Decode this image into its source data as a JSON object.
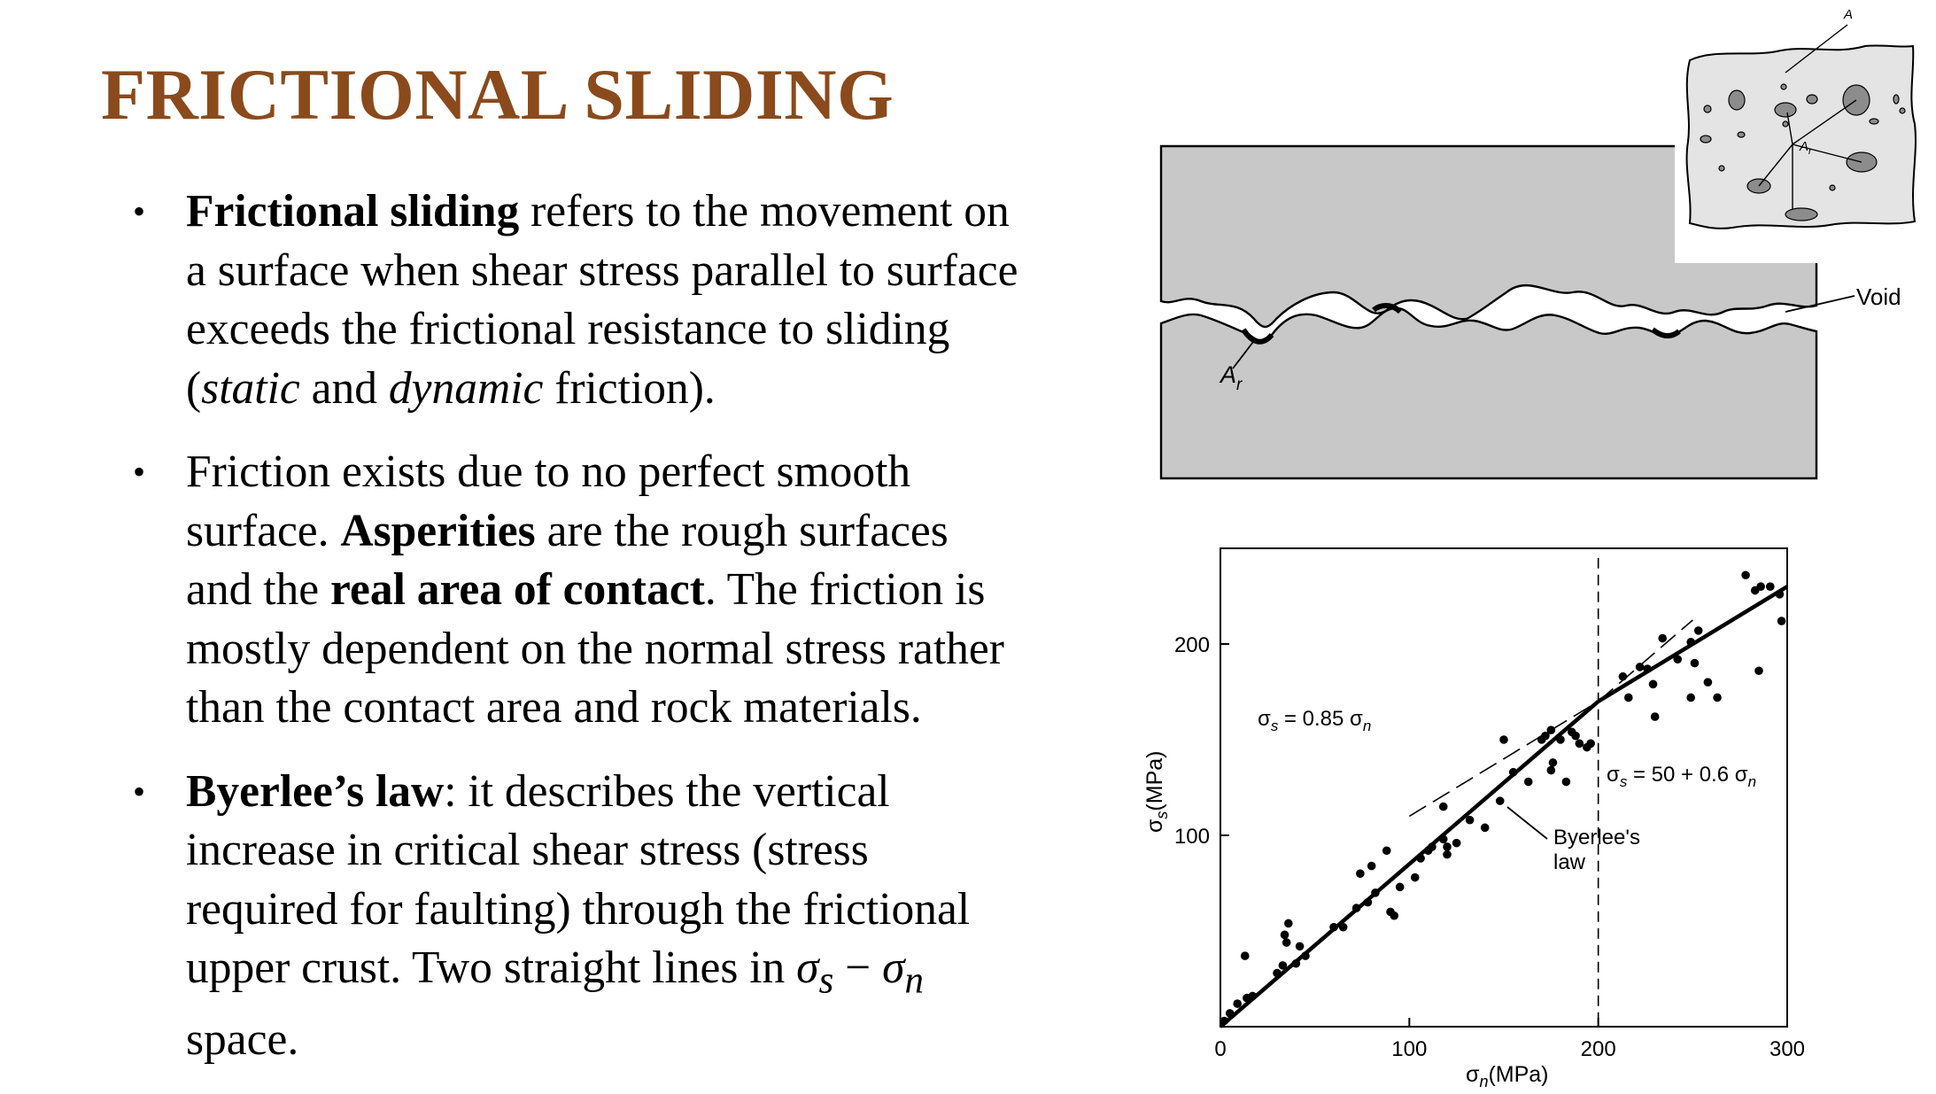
{
  "slide": {
    "title": "FRICTIONAL SLIDING",
    "bullets": [
      {
        "lines": [
          [
            {
              "t": "Frictional sliding",
              "b": true
            },
            {
              "t": " refers to the movement on"
            }
          ],
          [
            {
              "t": "a surface when shear stress parallel to surface"
            }
          ],
          [
            {
              "t": "exceeds the frictional resistance to sliding"
            }
          ],
          [
            {
              "t": "("
            },
            {
              "t": "static",
              "i": true
            },
            {
              "t": " and "
            },
            {
              "t": "dynamic",
              "i": true
            },
            {
              "t": " friction)."
            }
          ]
        ]
      },
      {
        "lines": [
          [
            {
              "t": "Friction exists due to no perfect smooth"
            }
          ],
          [
            {
              "t": "surface. "
            },
            {
              "t": "Asperities",
              "b": true
            },
            {
              "t": " are the rough surfaces"
            }
          ],
          [
            {
              "t": "and the "
            },
            {
              "t": "real area of contact",
              "b": true
            },
            {
              "t": ". The friction is"
            }
          ],
          [
            {
              "t": "mostly dependent on the normal stress rather"
            }
          ],
          [
            {
              "t": "than the contact area and rock materials."
            }
          ]
        ]
      },
      {
        "lines": [
          [
            {
              "t": "Byerlee’s law",
              "b": true
            },
            {
              "t": ": it describes the vertical"
            }
          ],
          [
            {
              "t": "increase in critical shear stress (stress"
            }
          ],
          [
            {
              "t": "required for faulting) through the frictional"
            }
          ],
          [
            {
              "t": "upper crust. Two straight lines in "
            },
            {
              "t": "σ",
              "m": true
            },
            {
              "t": "s",
              "m": true,
              "sub": true
            },
            {
              "t": " − "
            },
            {
              "t": "σ",
              "m": true
            },
            {
              "t": "n",
              "m": true,
              "sub": true
            }
          ],
          [
            {
              "t": "space."
            }
          ]
        ]
      }
    ]
  },
  "figure_top": {
    "label_a": "A",
    "label_ar_main": "A",
    "label_ar_sub": "r",
    "label_ar_inset_main": "A",
    "label_ar_inset_sub": "r",
    "label_void": "Void",
    "colors": {
      "rock": "#c8c8c8",
      "inset": "#e4e4e4",
      "grain": "#8c8c8c"
    }
  },
  "chart_data": {
    "type": "scatter",
    "xlabel_main": "σ",
    "xlabel_sub": "n",
    "xlabel_unit": "(MPa)",
    "ylabel_main": "σ",
    "ylabel_sub": "s",
    "ylabel_unit": "(MPa)",
    "xlim": [
      0,
      300
    ],
    "ylim": [
      0,
      250
    ],
    "xticks": [
      0,
      100,
      200,
      300
    ],
    "yticks": [
      100,
      200
    ],
    "grid": false,
    "annotations": {
      "eq1_main": "σ",
      "eq1_sub": "s",
      "eq1_rest": " = 0.85 σ",
      "eq1_end": "n",
      "eq2_main": "σ",
      "eq2_sub": "s",
      "eq2_rest": " = 50 + 0.6 σ",
      "eq2_end": "n",
      "byerlee_line1": "Byerlee's",
      "byerlee_line2": "law"
    },
    "series": [
      {
        "values": [
          [
            2,
            3
          ],
          [
            5,
            7
          ],
          [
            9,
            12
          ],
          [
            14,
            15
          ],
          [
            17,
            16
          ],
          [
            13,
            37
          ],
          [
            30,
            28
          ],
          [
            33,
            32
          ],
          [
            34,
            48
          ],
          [
            35,
            44
          ],
          [
            36,
            54
          ],
          [
            40,
            33
          ],
          [
            42,
            42
          ],
          [
            45,
            37
          ],
          [
            60,
            52
          ],
          [
            65,
            52
          ],
          [
            72,
            62
          ],
          [
            74,
            80
          ],
          [
            78,
            65
          ],
          [
            80,
            84
          ],
          [
            82,
            70
          ],
          [
            88,
            92
          ],
          [
            90,
            60
          ],
          [
            92,
            58
          ],
          [
            95,
            73
          ],
          [
            103,
            78
          ],
          [
            106,
            88
          ],
          [
            110,
            92
          ],
          [
            112,
            94
          ],
          [
            118,
            115
          ],
          [
            118,
            98
          ],
          [
            120,
            94
          ],
          [
            120,
            90
          ],
          [
            125,
            96
          ],
          [
            132,
            108
          ],
          [
            140,
            104
          ],
          [
            148,
            118
          ],
          [
            150,
            150
          ],
          [
            155,
            133
          ],
          [
            163,
            128
          ],
          [
            170,
            150
          ],
          [
            172,
            152
          ],
          [
            175,
            155
          ],
          [
            175,
            134
          ],
          [
            176,
            138
          ],
          [
            180,
            150
          ],
          [
            183,
            128
          ],
          [
            186,
            154
          ],
          [
            188,
            152
          ],
          [
            190,
            148
          ],
          [
            194,
            146
          ],
          [
            196,
            148
          ],
          [
            213,
            183
          ],
          [
            216,
            172
          ],
          [
            222,
            188
          ],
          [
            226,
            187
          ],
          [
            229,
            179
          ],
          [
            230,
            162
          ],
          [
            234,
            203
          ],
          [
            242,
            192
          ],
          [
            249,
            201
          ],
          [
            249,
            172
          ],
          [
            251,
            190
          ],
          [
            253,
            207
          ],
          [
            258,
            180
          ],
          [
            263,
            172
          ],
          [
            278,
            236
          ],
          [
            283,
            228
          ],
          [
            286,
            230
          ],
          [
            291,
            230
          ],
          [
            296,
            226
          ],
          [
            285,
            186
          ],
          [
            297,
            212
          ]
        ]
      }
    ],
    "lines": {
      "low": {
        "x": [
          0,
          200
        ],
        "slope": 0.85,
        "intercept": 0
      },
      "high": {
        "x": [
          200,
          300
        ],
        "slope": 0.6,
        "intercept": 50
      },
      "ext_low": {
        "x": [
          100,
          250
        ]
      },
      "ext_high": {
        "x": [
          200,
          250
        ]
      },
      "vertical_x": 200
    }
  }
}
